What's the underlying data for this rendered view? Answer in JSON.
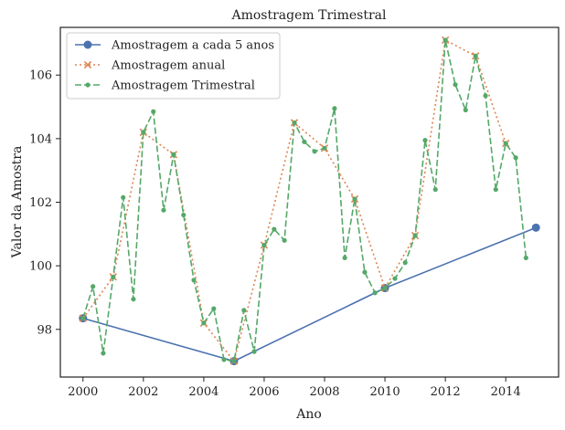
{
  "chart_data": {
    "type": "line",
    "title": "Amostragem Trimestral",
    "xlabel": "Ano",
    "ylabel": "Valor da Amostra",
    "xlim": [
      1999.25,
      2015.75
    ],
    "ylim": [
      96.5,
      107.5
    ],
    "xticks": [
      2000,
      2002,
      2004,
      2006,
      2008,
      2010,
      2012,
      2014
    ],
    "yticks": [
      98,
      100,
      102,
      104,
      106
    ],
    "grid": false,
    "legend_position": "top-left",
    "series": [
      {
        "name": "Amostragem a cada 5 anos",
        "color": "#4c72b0",
        "linestyle": "solid",
        "marker": "circle",
        "points": [
          [
            2000,
            98.35
          ],
          [
            2005,
            97.0
          ],
          [
            2010,
            99.3
          ],
          [
            2015,
            101.2
          ]
        ]
      },
      {
        "name": "Amostragem anual",
        "color": "#dd8452",
        "linestyle": "dotted",
        "marker": "x",
        "points": [
          [
            2000,
            98.35
          ],
          [
            2001,
            99.65
          ],
          [
            2002,
            104.2
          ],
          [
            2003,
            103.5
          ],
          [
            2004,
            98.2
          ],
          [
            2005,
            97.0
          ],
          [
            2006,
            100.65
          ],
          [
            2007,
            104.5
          ],
          [
            2008,
            103.7
          ],
          [
            2009,
            102.1
          ],
          [
            2010,
            99.3
          ],
          [
            2011,
            100.95
          ],
          [
            2012,
            107.1
          ],
          [
            2013,
            106.6
          ],
          [
            2014,
            103.85
          ]
        ]
      },
      {
        "name": "Amostragem Trimestral",
        "color": "#55a868",
        "linestyle": "dashed",
        "marker": "dot",
        "points": [
          [
            2000,
            98.35
          ],
          [
            2000.33,
            99.35
          ],
          [
            2000.67,
            97.25
          ],
          [
            2001,
            99.65
          ],
          [
            2001.33,
            102.15
          ],
          [
            2001.67,
            98.95
          ],
          [
            2002,
            104.2
          ],
          [
            2002.33,
            104.85
          ],
          [
            2002.67,
            101.75
          ],
          [
            2003,
            103.5
          ],
          [
            2003.33,
            101.6
          ],
          [
            2003.67,
            99.55
          ],
          [
            2004,
            98.2
          ],
          [
            2004.33,
            98.65
          ],
          [
            2004.67,
            97.05
          ],
          [
            2005,
            97.0
          ],
          [
            2005.33,
            98.6
          ],
          [
            2005.67,
            97.3
          ],
          [
            2006,
            100.65
          ],
          [
            2006.33,
            101.15
          ],
          [
            2006.67,
            100.8
          ],
          [
            2007,
            104.5
          ],
          [
            2007.33,
            103.9
          ],
          [
            2007.67,
            103.6
          ],
          [
            2008,
            103.7
          ],
          [
            2008.33,
            104.95
          ],
          [
            2008.67,
            100.25
          ],
          [
            2009,
            102.1
          ],
          [
            2009.33,
            99.8
          ],
          [
            2009.67,
            99.15
          ],
          [
            2010,
            99.3
          ],
          [
            2010.33,
            99.6
          ],
          [
            2010.67,
            100.1
          ],
          [
            2011,
            100.95
          ],
          [
            2011.33,
            103.95
          ],
          [
            2011.67,
            102.4
          ],
          [
            2012,
            107.1
          ],
          [
            2012.33,
            105.7
          ],
          [
            2012.67,
            104.9
          ],
          [
            2013,
            106.6
          ],
          [
            2013.33,
            105.35
          ],
          [
            2013.67,
            102.4
          ],
          [
            2014,
            103.85
          ],
          [
            2014.33,
            103.4
          ],
          [
            2014.67,
            100.25
          ]
        ]
      }
    ]
  }
}
